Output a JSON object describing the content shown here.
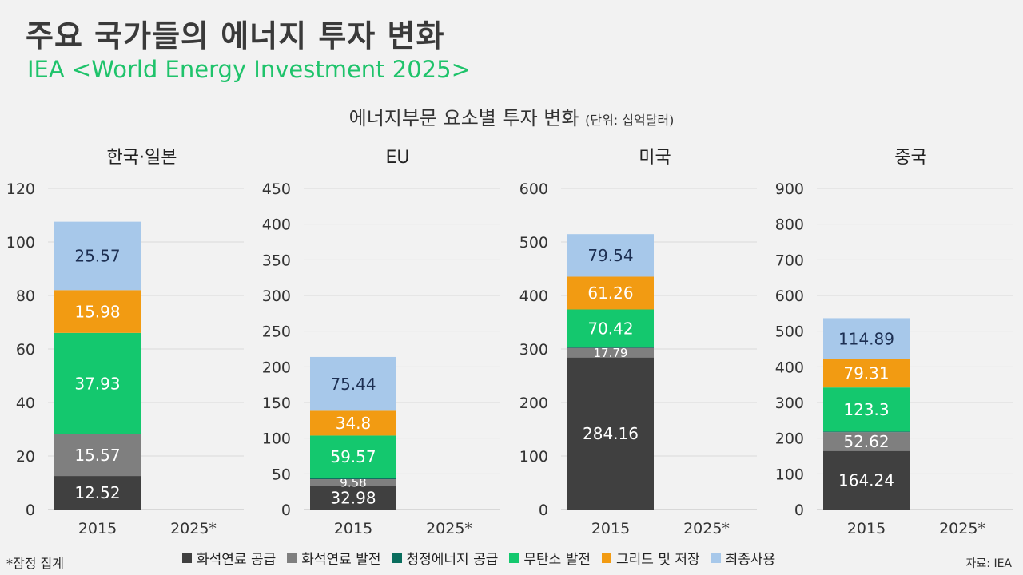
{
  "title": "주요 국가들의 에너지 투자 변화",
  "subtitle": "IEA <World Energy Investment 2025>",
  "section_title": "에너지부문 요소별 투자 변화",
  "section_unit": "(단위: 십억달러)",
  "footnote": "*잠정 집계",
  "source": "자료: IEA",
  "legend": [
    {
      "label": "화석연료 공급",
      "color": "#404040"
    },
    {
      "label": "화석연료 발전",
      "color": "#7f7f7f"
    },
    {
      "label": "청정에너지 공급",
      "color": "#0a6e5e"
    },
    {
      "label": "무탄소 발전",
      "color": "#14c86e"
    },
    {
      "label": "그리드 및 저장",
      "color": "#f29b12"
    },
    {
      "label": "최종사용",
      "color": "#a7c8ea"
    }
  ],
  "chart_data": [
    {
      "type": "bar",
      "title": "한국·일본",
      "categories": [
        "2015",
        "2025*"
      ],
      "ylim": [
        0,
        120
      ],
      "yticks": [
        0,
        20,
        40,
        60,
        80,
        100,
        120
      ],
      "series": [
        {
          "name": "화석연료 공급",
          "values": [
            12.52,
            null
          ],
          "label": "12.52"
        },
        {
          "name": "화석연료 발전",
          "values": [
            15.57,
            null
          ],
          "label": "15.57"
        },
        {
          "name": "청정에너지 공급",
          "values": [
            0,
            null
          ],
          "label": ""
        },
        {
          "name": "무탄소 발전",
          "values": [
            37.93,
            null
          ],
          "label": "37.93"
        },
        {
          "name": "그리드 및 저장",
          "values": [
            15.98,
            null
          ],
          "label": "15.98"
        },
        {
          "name": "최종사용",
          "values": [
            25.57,
            null
          ],
          "label": "25.57"
        }
      ]
    },
    {
      "type": "bar",
      "title": "EU",
      "categories": [
        "2015",
        "2025*"
      ],
      "ylim": [
        0,
        450
      ],
      "yticks": [
        0,
        50,
        100,
        150,
        200,
        250,
        300,
        350,
        400,
        450
      ],
      "series": [
        {
          "name": "화석연료 공급",
          "values": [
            32.98,
            null
          ],
          "label": "32.98"
        },
        {
          "name": "화석연료 발전",
          "values": [
            9.58,
            null
          ],
          "label": "9.58"
        },
        {
          "name": "청정에너지 공급",
          "values": [
            1.5,
            null
          ],
          "label": ""
        },
        {
          "name": "무탄소 발전",
          "values": [
            59.57,
            null
          ],
          "label": "59.57"
        },
        {
          "name": "그리드 및 저장",
          "values": [
            34.8,
            null
          ],
          "label": "34.8"
        },
        {
          "name": "최종사용",
          "values": [
            75.44,
            null
          ],
          "label": "75.44"
        }
      ]
    },
    {
      "type": "bar",
      "title": "미국",
      "categories": [
        "2015",
        "2025*"
      ],
      "ylim": [
        0,
        600
      ],
      "yticks": [
        0,
        100,
        200,
        300,
        400,
        500,
        600
      ],
      "series": [
        {
          "name": "화석연료 공급",
          "values": [
            284.16,
            null
          ],
          "label": "284.16"
        },
        {
          "name": "화석연료 발전",
          "values": [
            17.79,
            null
          ],
          "label": "17.79"
        },
        {
          "name": "청정에너지 공급",
          "values": [
            1.5,
            null
          ],
          "label": ""
        },
        {
          "name": "무탄소 발전",
          "values": [
            70.42,
            null
          ],
          "label": "70.42"
        },
        {
          "name": "그리드 및 저장",
          "values": [
            61.26,
            null
          ],
          "label": "61.26"
        },
        {
          "name": "최종사용",
          "values": [
            79.54,
            null
          ],
          "label": "79.54"
        }
      ]
    },
    {
      "type": "bar",
      "title": "중국",
      "categories": [
        "2015",
        "2025*"
      ],
      "ylim": [
        0,
        900
      ],
      "yticks": [
        0,
        100,
        200,
        300,
        400,
        500,
        600,
        700,
        800,
        900
      ],
      "series": [
        {
          "name": "화석연료 공급",
          "values": [
            164.24,
            null
          ],
          "label": "164.24"
        },
        {
          "name": "화석연료 발전",
          "values": [
            52.62,
            null
          ],
          "label": "52.62"
        },
        {
          "name": "청정에너지 공급",
          "values": [
            2,
            null
          ],
          "label": ""
        },
        {
          "name": "무탄소 발전",
          "values": [
            123.3,
            null
          ],
          "label": "123.3"
        },
        {
          "name": "그리드 및 저장",
          "values": [
            79.31,
            null
          ],
          "label": "79.31"
        },
        {
          "name": "최종사용",
          "values": [
            114.89,
            null
          ],
          "label": "114.89"
        }
      ]
    }
  ]
}
